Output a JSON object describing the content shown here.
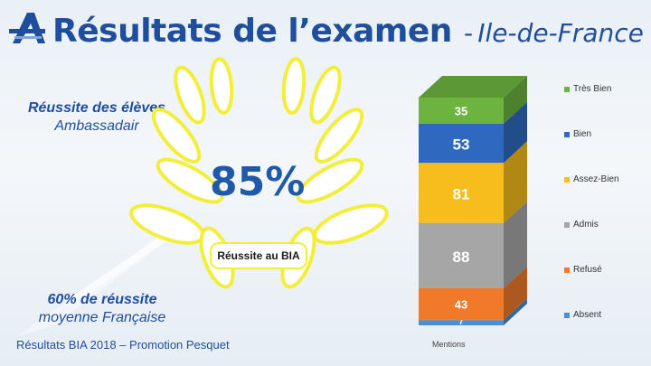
{
  "header": {
    "title": "Résultats de l’examen",
    "separator": "-",
    "region": "Ile-de-France"
  },
  "left_panel": {
    "success_line1": "Réussite des élèves",
    "success_line2": "Ambassadair",
    "national_line1": "60% de réussite",
    "national_line2": "moyenne Française"
  },
  "badge": {
    "percent": "85%",
    "label": "Réussite au BIA"
  },
  "footer": {
    "text": "Résultats BIA 2018 – Promotion Pesquet"
  },
  "colors": {
    "accent": "#1f4e9c",
    "laurel_stroke": "#f3ee3a"
  },
  "chart_data": {
    "type": "bar",
    "stacked": true,
    "categories": [
      "Mentions"
    ],
    "xlabel": "Mentions",
    "series": [
      {
        "name": "Absent",
        "values": [
          7
        ],
        "color": "#4a8fd6"
      },
      {
        "name": "Refusé",
        "values": [
          43
        ],
        "color": "#f07a2a"
      },
      {
        "name": "Admis",
        "values": [
          88
        ],
        "color": "#a6a6a6"
      },
      {
        "name": "Assez-Bien",
        "values": [
          81
        ],
        "color": "#f7bd1c"
      },
      {
        "name": "Bien",
        "values": [
          53
        ],
        "color": "#2f69bf"
      },
      {
        "name": "Très Bien",
        "values": [
          35
        ],
        "color": "#6cb33f"
      }
    ],
    "legend_position": "right",
    "grid": false
  }
}
